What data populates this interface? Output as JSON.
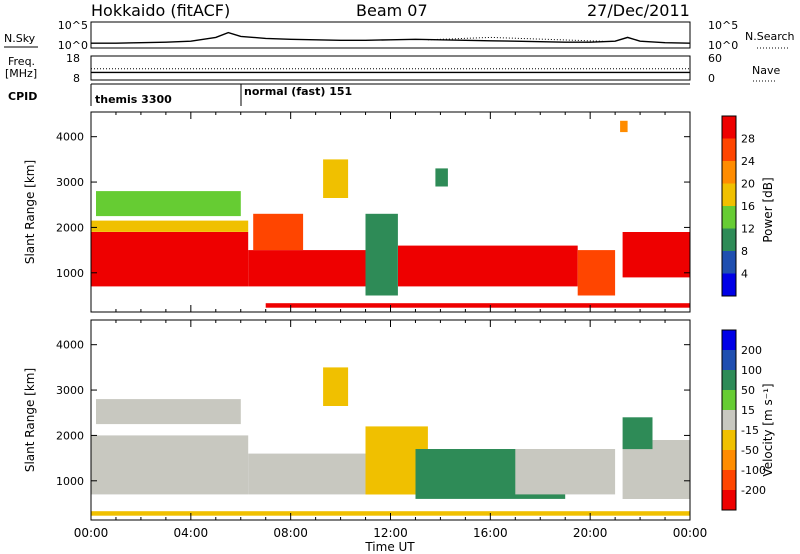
{
  "header": {
    "station": "Hokkaido (fitACF)",
    "beam": "Beam 07",
    "date": "27/Dec/2011"
  },
  "left_labels": {
    "nsky": "N.Sky",
    "freq": "Freq.",
    "freq_unit": "[MHz]",
    "cpid": "CPID"
  },
  "right_labels": {
    "nsearch": "N.Search",
    "nave": "Nave"
  },
  "cpid_programs": [
    {
      "name": "themis 3300",
      "start_hour": 0
    },
    {
      "name": "normal (fast) 151",
      "start_hour": 6
    }
  ],
  "colors": {
    "power_scale": [
      "#0000e6",
      "#1f4fb0",
      "#2e8b57",
      "#66cc33",
      "#f0c000",
      "#ff8c00",
      "#ff4500",
      "#ee0000"
    ],
    "velocity_scale": [
      "#ee0000",
      "#ff4500",
      "#ff8c00",
      "#f0c000",
      "#c8c8c0",
      "#66cc33",
      "#2e8b57",
      "#1f4fb0",
      "#0000e6"
    ],
    "ground_scatter": "#c0c0b8"
  },
  "chart_data": [
    {
      "type": "line",
      "panel": "noise",
      "left_ticks": [
        "10^5",
        "10^0"
      ],
      "right_ticks": [
        "10^5",
        "10^0"
      ],
      "series": [
        {
          "name": "N.Sky",
          "x": [
            0,
            1,
            2,
            3,
            4,
            5,
            5.5,
            6,
            7,
            8,
            9,
            10,
            11,
            12,
            13,
            14,
            15,
            16,
            17,
            18,
            19,
            20,
            21,
            21.5,
            22,
            23,
            24
          ],
          "y": [
            0.8,
            0.8,
            0.9,
            1.0,
            1.2,
            2.0,
            3.0,
            2.2,
            1.8,
            1.6,
            1.5,
            1.4,
            1.4,
            1.5,
            1.6,
            1.5,
            1.4,
            1.3,
            1.2,
            1.1,
            1.0,
            1.0,
            1.2,
            2.0,
            1.2,
            0.9,
            0.8
          ]
        }
      ]
    },
    {
      "type": "line",
      "panel": "frequency",
      "left_ticks": [
        "18",
        "8"
      ],
      "right_ticks": [
        "60",
        "0"
      ],
      "series": [
        {
          "name": "Freq.",
          "x": [
            0,
            24
          ],
          "y": [
            11,
            11
          ]
        },
        {
          "name": "Nave",
          "x": [
            0,
            24
          ],
          "y": [
            28,
            28
          ]
        }
      ]
    },
    {
      "type": "heatmap",
      "quantity": "power",
      "ylabel": "Slant Range [km]",
      "xlabel": "Time UT",
      "xlim": [
        0,
        24
      ],
      "ylim": [
        180,
        4500
      ],
      "x_ticks": [
        "00:00",
        "04:00",
        "08:00",
        "12:00",
        "16:00",
        "20:00",
        "00:00"
      ],
      "y_ticks": [
        "1000",
        "2000",
        "3000",
        "4000"
      ],
      "colorbar": {
        "label": "Power [dB]",
        "ticks": [
          "4",
          "8",
          "12",
          "16",
          "20",
          "24",
          "28"
        ],
        "range": [
          0,
          32
        ]
      },
      "bands": [
        {
          "t0": 0,
          "t1": 6.3,
          "r0": 700,
          "r1": 1900,
          "value": 28
        },
        {
          "t0": 0,
          "t1": 6.3,
          "r0": 1900,
          "r1": 2150,
          "value": 16
        },
        {
          "t0": 0.2,
          "t1": 6.0,
          "r0": 2250,
          "r1": 2800,
          "value": 12
        },
        {
          "t0": 6.3,
          "t1": 11.0,
          "r0": 700,
          "r1": 1500,
          "value": 28
        },
        {
          "t0": 6.5,
          "t1": 8.5,
          "r0": 1500,
          "r1": 2300,
          "value": 24
        },
        {
          "t0": 11.0,
          "t1": 12.3,
          "r0": 500,
          "r1": 2300,
          "value": 10
        },
        {
          "t0": 12.3,
          "t1": 19.5,
          "r0": 700,
          "r1": 1600,
          "value": 28
        },
        {
          "t0": 19.5,
          "t1": 21.0,
          "r0": 500,
          "r1": 1500,
          "value": 26
        },
        {
          "t0": 21.3,
          "t1": 24.0,
          "r0": 900,
          "r1": 1900,
          "value": 28
        },
        {
          "t0": 7.0,
          "t1": 24.0,
          "r0": 230,
          "r1": 330,
          "value": 30
        },
        {
          "t0": 9.3,
          "t1": 10.3,
          "r0": 2650,
          "r1": 3500,
          "value": 16
        },
        {
          "t0": 13.8,
          "t1": 14.3,
          "r0": 2900,
          "r1": 3300,
          "value": 8
        },
        {
          "t0": 21.2,
          "t1": 21.5,
          "r0": 4100,
          "r1": 4350,
          "value": 20
        }
      ]
    },
    {
      "type": "heatmap",
      "quantity": "velocity",
      "ylabel": "Slant Range [km]",
      "xlabel": "Time UT",
      "xlim": [
        0,
        24
      ],
      "ylim": [
        180,
        4500
      ],
      "x_ticks": [
        "00:00",
        "04:00",
        "08:00",
        "12:00",
        "16:00",
        "20:00",
        "00:00"
      ],
      "y_ticks": [
        "1000",
        "2000",
        "3000",
        "4000"
      ],
      "colorbar": {
        "label": "Velocity [m s⁻¹]",
        "ticks": [
          "200",
          "100",
          "50",
          "15",
          "-15",
          "-50",
          "-100",
          "-200"
        ],
        "range": [
          -250,
          250
        ]
      },
      "bands": [
        {
          "t0": 0,
          "t1": 6.3,
          "r0": 700,
          "r1": 2000,
          "value": 0
        },
        {
          "t0": 0.2,
          "t1": 6.0,
          "r0": 2250,
          "r1": 2800,
          "value": 0
        },
        {
          "t0": 6.3,
          "t1": 11.0,
          "r0": 700,
          "r1": 1600,
          "value": 0
        },
        {
          "t0": 11.0,
          "t1": 13.5,
          "r0": 700,
          "r1": 2200,
          "value": -40
        },
        {
          "t0": 13.0,
          "t1": 19.0,
          "r0": 600,
          "r1": 1700,
          "value": 70
        },
        {
          "t0": 17.0,
          "t1": 21.0,
          "r0": 700,
          "r1": 1700,
          "value": 0
        },
        {
          "t0": 21.3,
          "t1": 24.0,
          "r0": 600,
          "r1": 1900,
          "value": 0
        },
        {
          "t0": 21.3,
          "t1": 22.5,
          "r0": 1700,
          "r1": 2400,
          "value": 60
        },
        {
          "t0": 0,
          "t1": 24.0,
          "r0": 230,
          "r1": 330,
          "value": -40
        },
        {
          "t0": 9.3,
          "t1": 10.3,
          "r0": 2650,
          "r1": 3500,
          "value": -30
        }
      ]
    }
  ]
}
